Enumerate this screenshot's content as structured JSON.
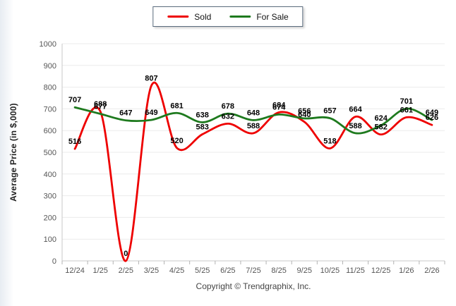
{
  "legend": {
    "items": [
      {
        "label": "Sold",
        "color": "#ee0000"
      },
      {
        "label": "For Sale",
        "color": "#1e7a1e"
      }
    ]
  },
  "y_axis_title": "Average Price (in $,000)",
  "copyright": "Copyright © Trendgraphix, Inc.",
  "chart_data": {
    "type": "line",
    "categories": [
      "12/24",
      "1/25",
      "2/25",
      "3/25",
      "4/25",
      "5/25",
      "6/25",
      "7/25",
      "8/25",
      "9/25",
      "10/25",
      "11/25",
      "12/25",
      "1/26",
      "2/26"
    ],
    "series": [
      {
        "name": "Sold",
        "color": "#ee0000",
        "values": [
          516,
          688,
          0,
          807,
          520,
          583,
          632,
          588,
          684,
          640,
          518,
          664,
          582,
          661,
          626
        ]
      },
      {
        "name": "For Sale",
        "color": "#1e7a1e",
        "values": [
          707,
          677,
          647,
          649,
          681,
          638,
          678,
          648,
          674,
          656,
          657,
          588,
          624,
          701,
          649
        ]
      }
    ],
    "title": "",
    "xlabel": "",
    "ylabel": "Average Price (in $,000)",
    "ylim": [
      0,
      1000
    ],
    "ytick_step": 100,
    "grid": "horizontal",
    "legend_position": "top",
    "point_labels": true
  }
}
